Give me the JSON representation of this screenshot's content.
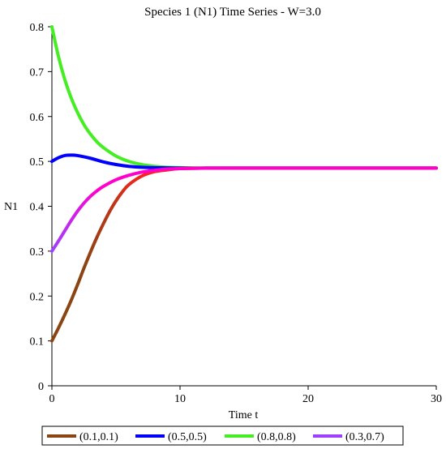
{
  "chart_data": {
    "type": "line",
    "title": "Species 1 (N1) Time Series - W=3.0",
    "xlabel": "Time t",
    "ylabel": "N1",
    "xlim": [
      0,
      30
    ],
    "ylim": [
      0,
      0.8
    ],
    "x_ticks": [
      0,
      10,
      20,
      30
    ],
    "y_ticks": [
      0,
      0.1,
      0.2,
      0.3,
      0.4,
      0.5,
      0.6,
      0.7,
      0.8
    ],
    "x_tick_labels": [
      "0",
      "10",
      "20",
      "30"
    ],
    "y_tick_labels": [
      "0",
      "0.1",
      "0.2",
      "0.3",
      "0.4",
      "0.5",
      "0.6",
      "0.7",
      "0.8"
    ],
    "grid": false,
    "legend_position": "bottom",
    "series": [
      {
        "name": "(0.1,0.1)",
        "color": "#8b4513",
        "color_end": "#ff2020",
        "x": [
          0,
          0.5,
          1,
          1.5,
          2,
          2.5,
          3,
          3.5,
          4,
          4.5,
          5,
          5.5,
          6,
          7,
          8,
          9,
          10,
          12,
          14,
          20,
          30
        ],
        "y": [
          0.1,
          0.128,
          0.158,
          0.19,
          0.225,
          0.262,
          0.297,
          0.33,
          0.36,
          0.388,
          0.412,
          0.432,
          0.448,
          0.467,
          0.477,
          0.481,
          0.484,
          0.485,
          0.485,
          0.485,
          0.485
        ]
      },
      {
        "name": "(0.5,0.5)",
        "color": "#0000ff",
        "x": [
          0,
          0.5,
          1,
          1.5,
          2,
          3,
          4,
          5,
          6,
          7,
          8,
          10,
          12,
          14,
          20,
          30
        ],
        "y": [
          0.5,
          0.508,
          0.513,
          0.514,
          0.513,
          0.507,
          0.499,
          0.493,
          0.489,
          0.487,
          0.486,
          0.485,
          0.485,
          0.485,
          0.485,
          0.485
        ]
      },
      {
        "name": "(0.8,0.8)",
        "color": "#44ee22",
        "x": [
          0,
          0.5,
          1,
          1.5,
          2,
          2.5,
          3,
          3.5,
          4,
          5,
          6,
          7,
          8,
          9,
          10,
          12,
          14,
          20,
          30
        ],
        "y": [
          0.8,
          0.735,
          0.683,
          0.642,
          0.609,
          0.582,
          0.561,
          0.544,
          0.531,
          0.512,
          0.5,
          0.493,
          0.489,
          0.487,
          0.486,
          0.485,
          0.485,
          0.485,
          0.485
        ]
      },
      {
        "name": "(0.3,0.7)",
        "color": "#a040ff",
        "color_end": "#ff00cc",
        "x": [
          0,
          0.5,
          1,
          1.5,
          2,
          2.5,
          3,
          3.5,
          4,
          5,
          6,
          7,
          8,
          9,
          10,
          12,
          14,
          20,
          30
        ],
        "y": [
          0.3,
          0.322,
          0.345,
          0.368,
          0.389,
          0.407,
          0.422,
          0.434,
          0.444,
          0.459,
          0.469,
          0.476,
          0.48,
          0.483,
          0.484,
          0.485,
          0.485,
          0.485,
          0.485
        ]
      }
    ]
  }
}
